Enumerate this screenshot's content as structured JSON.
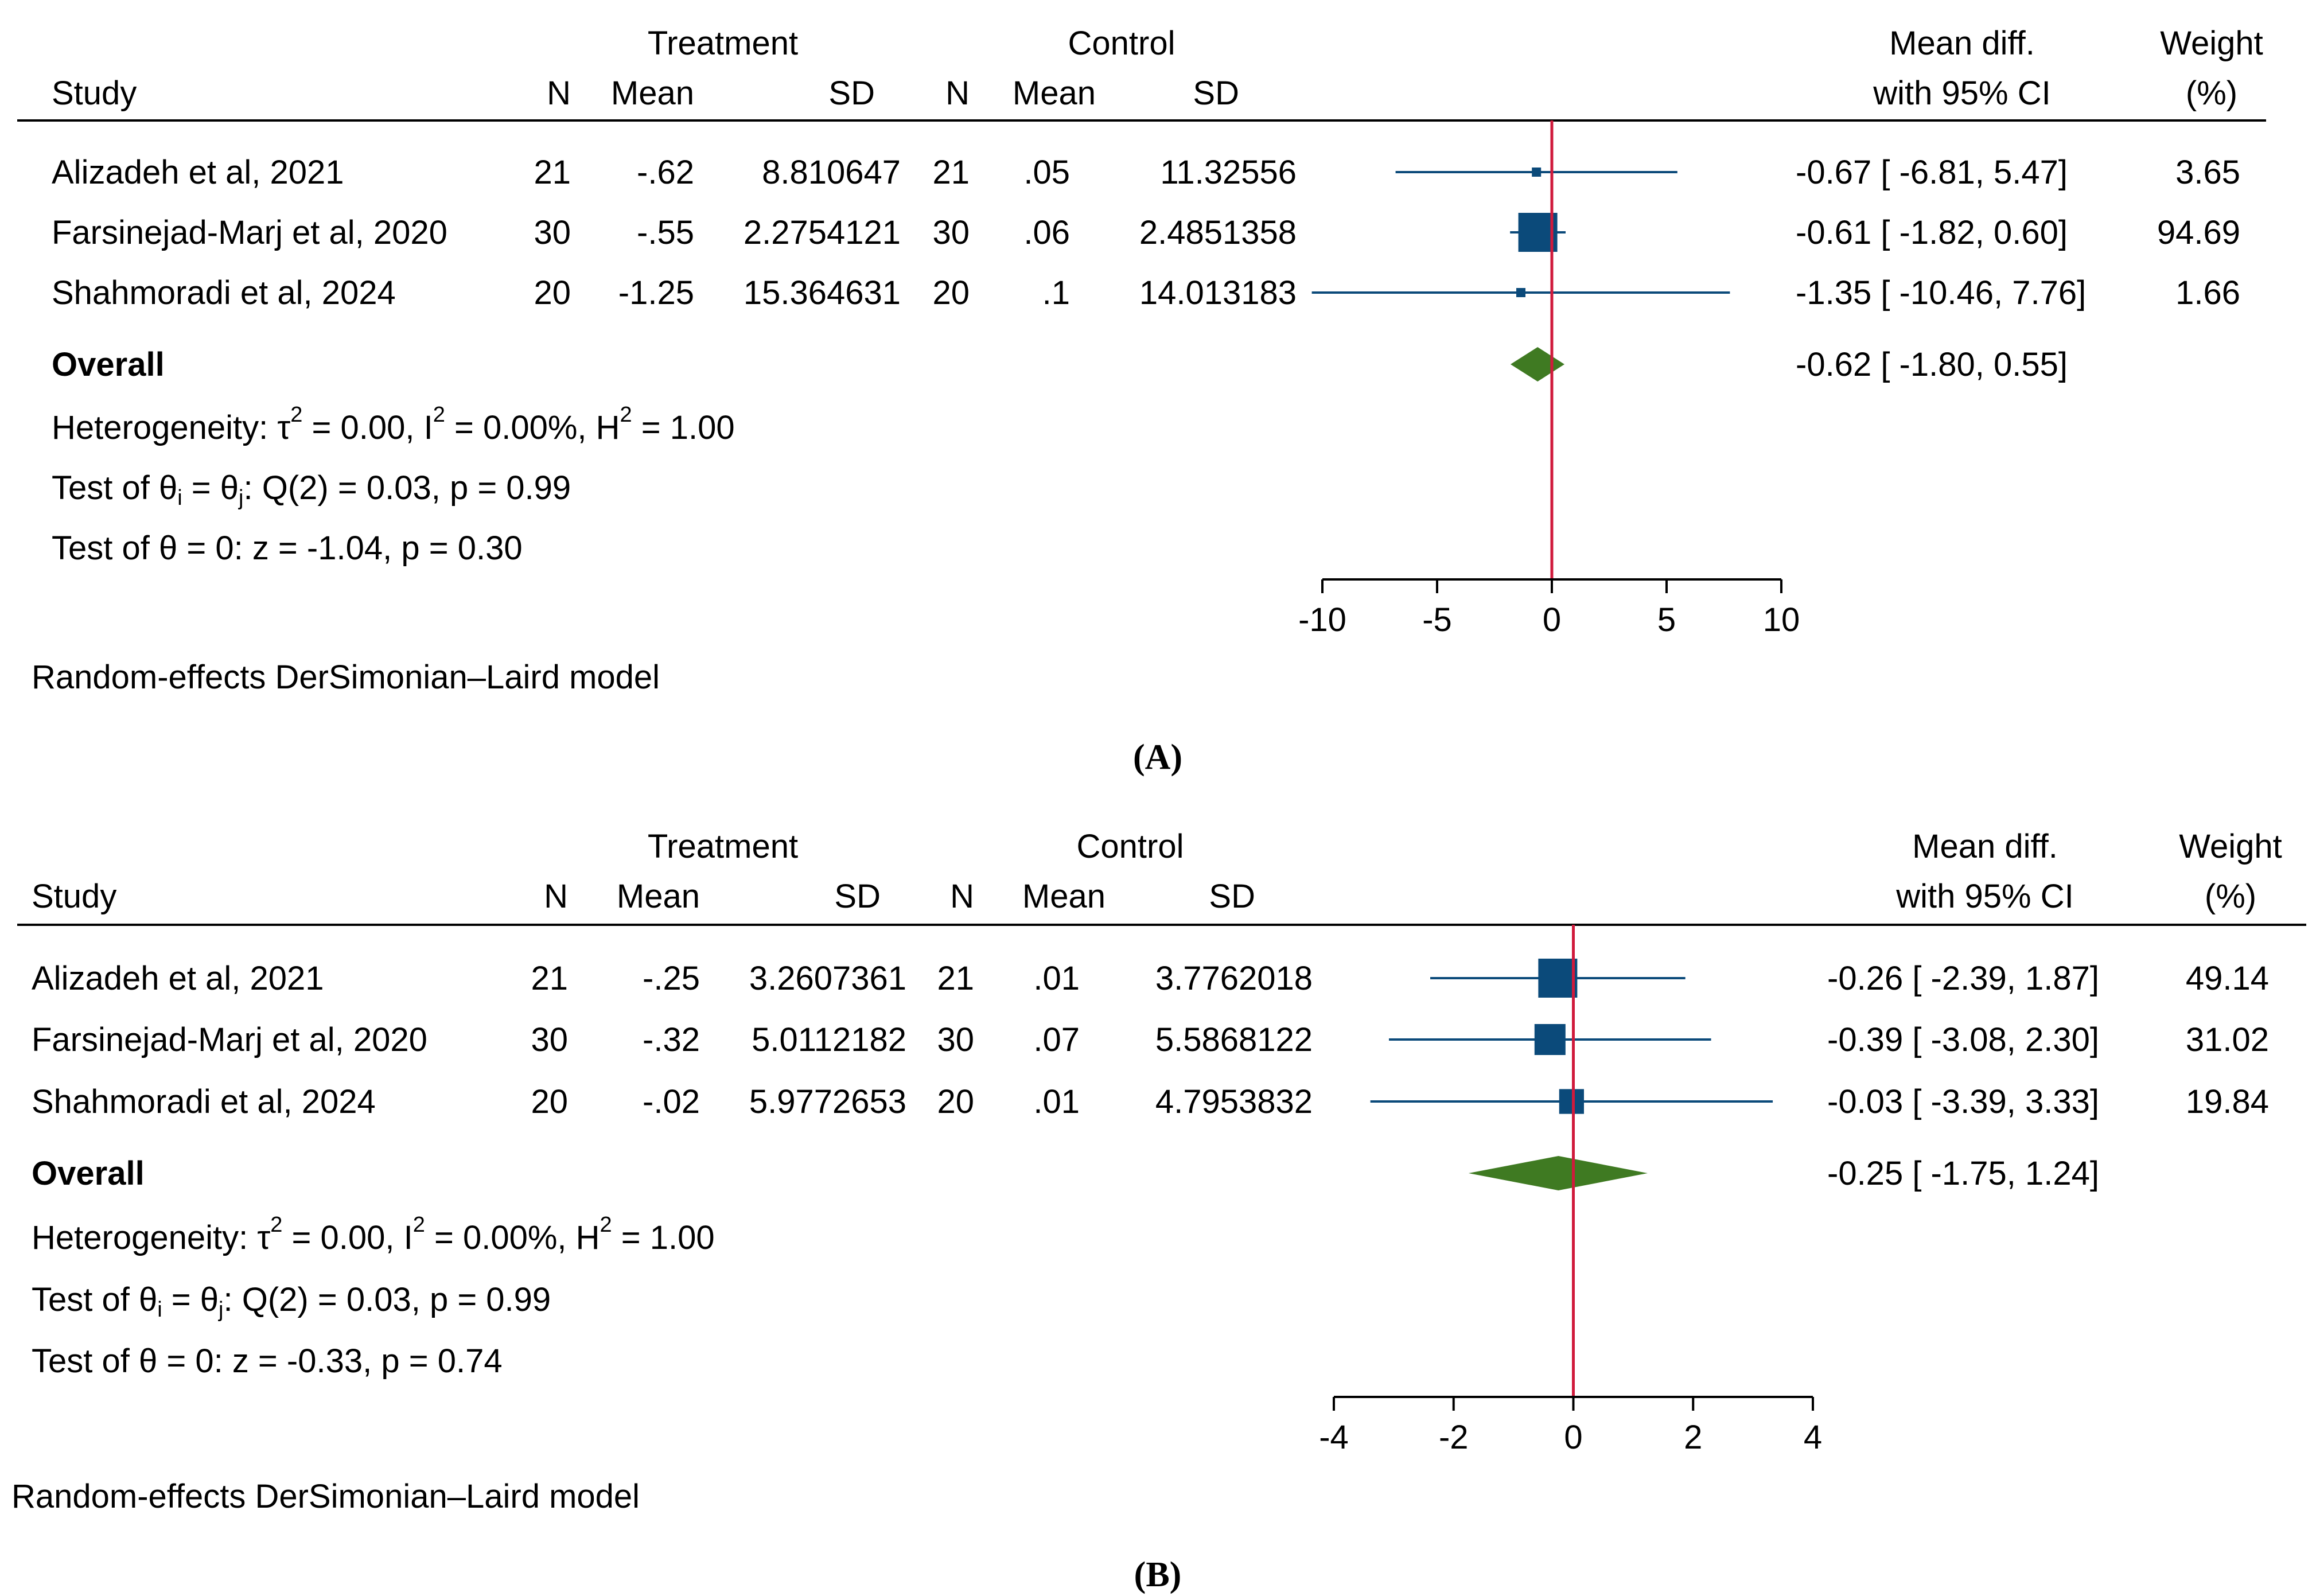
{
  "colors": {
    "box": "#0b4a7a",
    "ci_line": "#0b4a7a",
    "diamond": "#3f7a22",
    "null_line": "#d01a3c",
    "rule": "#000000"
  },
  "chart_data": [
    {
      "panel_label": "(A)",
      "type": "forest",
      "group_headers": {
        "treatment": "Treatment",
        "control": "Control"
      },
      "columns": {
        "study": "Study",
        "n_t": "N",
        "mean_t": "Mean",
        "sd_t": "SD",
        "n_c": "N",
        "mean_c": "Mean",
        "sd_c": "SD",
        "effect_line1": "Mean diff.",
        "effect_line2": "with 95% CI",
        "weight_line1": "Weight",
        "weight_line2": "(%)"
      },
      "studies": [
        {
          "name": "Alizadeh et al, 2021",
          "n_t": "21",
          "mean_t": "-.62",
          "sd_t": "8.810647",
          "n_c": "21",
          "mean_c": ".05",
          "sd_c": "11.32556",
          "md": -0.67,
          "lo": -6.81,
          "hi": 5.47,
          "ci_text": "-0.67 [   -6.81,  5.47]",
          "weight": 3.65,
          "weight_text": "3.65"
        },
        {
          "name": "Farsinejad-Marj et al, 2020",
          "n_t": "30",
          "mean_t": "-.55",
          "sd_t": "2.2754121",
          "n_c": "30",
          "mean_c": ".06",
          "sd_c": "2.4851358",
          "md": -0.61,
          "lo": -1.82,
          "hi": 0.6,
          "ci_text": "-0.61 [   -1.82,  0.60]",
          "weight": 94.69,
          "weight_text": "94.69"
        },
        {
          "name": "Shahmoradi et al, 2024",
          "n_t": "20",
          "mean_t": "-1.25",
          "sd_t": "15.364631",
          "n_c": "20",
          "mean_c": ".1",
          "sd_c": "14.013183",
          "md": -1.35,
          "lo": -10.46,
          "hi": 7.76,
          "ci_text": "-1.35 [ -10.46,  7.76]",
          "weight": 1.66,
          "weight_text": "1.66"
        }
      ],
      "overall": {
        "label": "Overall",
        "md": -0.62,
        "lo": -1.8,
        "hi": 0.55,
        "ci_text": "-0.62 [   -1.80,  0.55]"
      },
      "heterogeneity": {
        "prefix": "Heterogeneity: τ",
        "tau2": " = 0.00, I",
        "i2": " = 0.00%, H",
        "h2": " = 1.00",
        "sup": "2"
      },
      "test_theta_ij": {
        "prefix": "Test of θ",
        "sub_i": "i",
        "mid": " = θ",
        "sub_j": "j",
        "rest": ": Q(2) = 0.03, p = 0.99"
      },
      "test_theta_0": "Test of θ = 0: z = -1.04, p = 0.30",
      "model_note": "Random-effects DerSimonian–Laird model",
      "x_axis": {
        "min": -10,
        "max": 10,
        "ticks": [
          -10,
          -5,
          0,
          5,
          10
        ],
        "tick_labels": [
          "-10",
          "-5",
          "0",
          "5",
          "10"
        ],
        "null_value": 0
      }
    },
    {
      "panel_label": "(B)",
      "type": "forest",
      "group_headers": {
        "treatment": "Treatment",
        "control": "Control"
      },
      "columns": {
        "study": "Study",
        "n_t": "N",
        "mean_t": "Mean",
        "sd_t": "SD",
        "n_c": "N",
        "mean_c": "Mean",
        "sd_c": "SD",
        "effect_line1": "Mean diff.",
        "effect_line2": "with 95% CI",
        "weight_line1": "Weight",
        "weight_line2": "(%)"
      },
      "studies": [
        {
          "name": "Alizadeh et al, 2021",
          "n_t": "21",
          "mean_t": "-.25",
          "sd_t": "3.2607361",
          "n_c": "21",
          "mean_c": ".01",
          "sd_c": "3.7762018",
          "md": -0.26,
          "lo": -2.39,
          "hi": 1.87,
          "ci_text": "-0.26 [ -2.39,  1.87]",
          "weight": 49.14,
          "weight_text": "49.14"
        },
        {
          "name": "Farsinejad-Marj et al, 2020",
          "n_t": "30",
          "mean_t": "-.32",
          "sd_t": "5.0112182",
          "n_c": "30",
          "mean_c": ".07",
          "sd_c": "5.5868122",
          "md": -0.39,
          "lo": -3.08,
          "hi": 2.3,
          "ci_text": "-0.39 [ -3.08,  2.30]",
          "weight": 31.02,
          "weight_text": "31.02"
        },
        {
          "name": "Shahmoradi et al, 2024",
          "n_t": "20",
          "mean_t": "-.02",
          "sd_t": "5.9772653",
          "n_c": "20",
          "mean_c": ".01",
          "sd_c": "4.7953832",
          "md": -0.03,
          "lo": -3.39,
          "hi": 3.33,
          "ci_text": "-0.03 [ -3.39,  3.33]",
          "weight": 19.84,
          "weight_text": "19.84"
        }
      ],
      "overall": {
        "label": "Overall",
        "md": -0.25,
        "lo": -1.75,
        "hi": 1.24,
        "ci_text": "-0.25 [ -1.75,  1.24]"
      },
      "heterogeneity": {
        "prefix": "Heterogeneity: τ",
        "tau2": " = 0.00, I",
        "i2": " = 0.00%, H",
        "h2": " = 1.00",
        "sup": "2"
      },
      "test_theta_ij": {
        "prefix": "Test of θ",
        "sub_i": "i",
        "mid": " = θ",
        "sub_j": "j",
        "rest": ": Q(2) = 0.03, p = 0.99"
      },
      "test_theta_0": "Test of θ = 0: z = -0.33, p = 0.74",
      "model_note": "Random-effects DerSimonian–Laird model",
      "x_axis": {
        "min": -4,
        "max": 4,
        "ticks": [
          -4,
          -2,
          0,
          2,
          4
        ],
        "tick_labels": [
          "-4",
          "-2",
          "0",
          "2",
          "4"
        ],
        "null_value": 0
      }
    }
  ]
}
